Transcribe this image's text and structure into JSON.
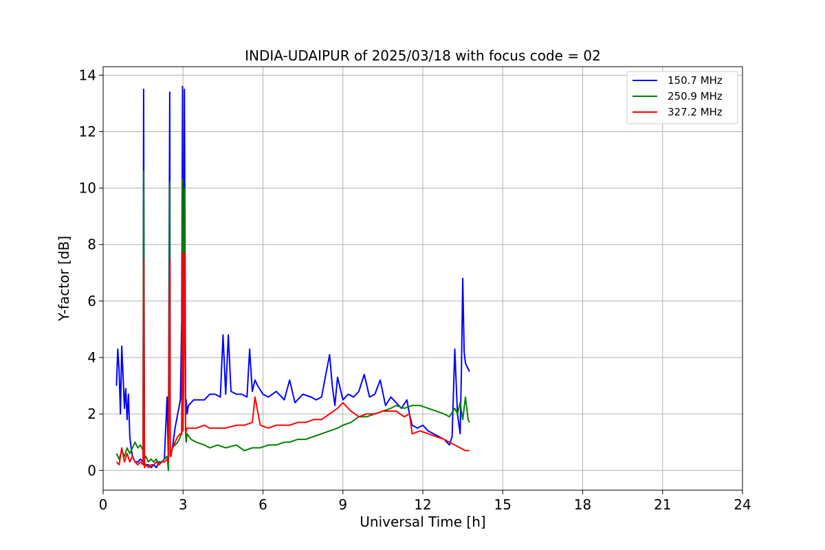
{
  "chart_data": {
    "type": "line",
    "title": "INDIA-UDAIPUR of 2025/03/18 with focus code = 02",
    "xlabel": "Universal Time [h]",
    "ylabel": "Y-factor [dB]",
    "xlim": [
      0,
      24
    ],
    "ylim": [
      -0.7,
      14.3
    ],
    "xticks": [
      0,
      3,
      6,
      9,
      12,
      15,
      18,
      21,
      24
    ],
    "yticks": [
      0,
      2,
      4,
      6,
      8,
      10,
      12,
      14
    ],
    "grid": true,
    "legend_position": "top-right",
    "series": [
      {
        "name": "150.7 MHz",
        "color": "#0000ff",
        "x": [
          0.5,
          0.55,
          0.6,
          0.65,
          0.7,
          0.75,
          0.8,
          0.85,
          0.9,
          0.95,
          1.0,
          1.05,
          1.1,
          1.15,
          1.2,
          1.3,
          1.4,
          1.5,
          1.52,
          1.55,
          1.58,
          1.6,
          1.7,
          1.8,
          1.9,
          2.0,
          2.1,
          2.2,
          2.3,
          2.4,
          2.45,
          2.5,
          2.52,
          2.55,
          2.6,
          2.7,
          2.8,
          2.9,
          2.95,
          2.98,
          3.0,
          3.02,
          3.05,
          3.1,
          3.12,
          3.15,
          3.2,
          3.4,
          3.6,
          3.8,
          4.0,
          4.2,
          4.4,
          4.5,
          4.6,
          4.7,
          4.8,
          5.0,
          5.2,
          5.4,
          5.5,
          5.6,
          5.7,
          5.8,
          6.0,
          6.2,
          6.5,
          6.8,
          7.0,
          7.2,
          7.5,
          7.8,
          8.0,
          8.2,
          8.5,
          8.6,
          8.7,
          8.8,
          9.0,
          9.2,
          9.4,
          9.6,
          9.8,
          10.0,
          10.2,
          10.4,
          10.6,
          10.8,
          11.0,
          11.2,
          11.4,
          11.5,
          11.6,
          11.8,
          12.0,
          12.2,
          12.4,
          12.6,
          12.8,
          13.0,
          13.1,
          13.2,
          13.3,
          13.4,
          13.45,
          13.5,
          13.55,
          13.6,
          13.7,
          13.75
        ],
        "values": [
          3.0,
          4.3,
          3.5,
          2.0,
          4.4,
          3.3,
          2.2,
          2.9,
          1.8,
          2.7,
          1.2,
          0.8,
          0.5,
          0.4,
          0.3,
          0.3,
          0.4,
          0.3,
          13.5,
          0.3,
          0.2,
          0.2,
          0.2,
          0.1,
          0.2,
          0.1,
          0.3,
          0.3,
          0.4,
          2.6,
          0.4,
          13.4,
          0.5,
          0.6,
          0.8,
          1.5,
          2.0,
          2.5,
          5.3,
          13.6,
          2.0,
          3.0,
          13.5,
          2.2,
          2.5,
          2.0,
          2.3,
          2.5,
          2.5,
          2.5,
          2.7,
          2.7,
          2.6,
          4.8,
          2.7,
          4.8,
          2.8,
          2.7,
          2.7,
          2.6,
          4.3,
          2.8,
          3.2,
          3.0,
          2.7,
          2.6,
          2.8,
          2.5,
          3.2,
          2.4,
          2.7,
          2.6,
          2.5,
          2.6,
          4.1,
          3.0,
          2.3,
          3.3,
          2.5,
          2.7,
          2.6,
          2.8,
          3.4,
          2.6,
          2.7,
          3.2,
          2.3,
          2.6,
          2.4,
          2.2,
          2.5,
          2.0,
          1.6,
          1.5,
          1.6,
          1.4,
          1.3,
          1.2,
          1.1,
          0.9,
          1.2,
          4.3,
          2.0,
          1.3,
          3.6,
          6.8,
          4.2,
          3.8,
          3.6,
          3.5
        ]
      },
      {
        "name": "250.9 MHz",
        "color": "#008000",
        "x": [
          0.5,
          0.6,
          0.7,
          0.8,
          0.9,
          1.0,
          1.1,
          1.2,
          1.3,
          1.4,
          1.5,
          1.52,
          1.55,
          1.6,
          1.7,
          1.8,
          1.9,
          2.0,
          2.1,
          2.2,
          2.3,
          2.4,
          2.45,
          2.5,
          2.52,
          2.55,
          2.6,
          2.7,
          2.8,
          2.9,
          2.95,
          2.98,
          3.0,
          3.05,
          3.1,
          3.12,
          3.15,
          3.3,
          3.5,
          3.8,
          4.0,
          4.3,
          4.6,
          5.0,
          5.3,
          5.6,
          5.9,
          6.2,
          6.5,
          6.8,
          7.0,
          7.3,
          7.6,
          7.9,
          8.2,
          8.5,
          8.8,
          9.0,
          9.3,
          9.6,
          9.9,
          10.2,
          10.5,
          10.8,
          11.0,
          11.3,
          11.6,
          11.9,
          12.2,
          12.5,
          12.8,
          13.0,
          13.2,
          13.3,
          13.4,
          13.5,
          13.6,
          13.7,
          13.75
        ],
        "values": [
          0.6,
          0.4,
          0.7,
          0.5,
          0.8,
          0.6,
          0.8,
          1.0,
          0.8,
          0.9,
          0.7,
          10.6,
          0.4,
          0.5,
          0.3,
          0.4,
          0.3,
          0.4,
          0.2,
          0.3,
          0.4,
          0.5,
          0.0,
          10.2,
          0.6,
          0.5,
          0.8,
          0.9,
          1.0,
          1.2,
          1.3,
          10.3,
          1.4,
          10.0,
          1.2,
          1.0,
          1.3,
          1.1,
          1.0,
          0.9,
          0.8,
          0.9,
          0.8,
          0.9,
          0.7,
          0.8,
          0.8,
          0.9,
          0.9,
          1.0,
          1.0,
          1.1,
          1.1,
          1.2,
          1.3,
          1.4,
          1.5,
          1.6,
          1.7,
          1.9,
          1.9,
          2.0,
          2.1,
          2.2,
          2.3,
          2.2,
          2.3,
          2.3,
          2.2,
          2.1,
          2.0,
          1.9,
          2.2,
          2.0,
          2.4,
          1.8,
          2.6,
          1.8,
          1.7
        ]
      },
      {
        "name": "327.2 MHz",
        "color": "#ff0000",
        "x": [
          0.5,
          0.6,
          0.7,
          0.8,
          0.9,
          1.0,
          1.1,
          1.2,
          1.3,
          1.4,
          1.5,
          1.52,
          1.55,
          1.6,
          1.7,
          1.8,
          1.9,
          2.0,
          2.1,
          2.2,
          2.3,
          2.4,
          2.45,
          2.5,
          2.52,
          2.55,
          2.6,
          2.7,
          2.8,
          2.9,
          2.95,
          2.98,
          3.0,
          3.05,
          3.1,
          3.12,
          3.15,
          3.3,
          3.5,
          3.8,
          4.0,
          4.3,
          4.6,
          5.0,
          5.3,
          5.6,
          5.7,
          5.9,
          6.2,
          6.5,
          6.8,
          7.0,
          7.3,
          7.6,
          7.9,
          8.2,
          8.5,
          8.8,
          9.0,
          9.3,
          9.6,
          9.9,
          10.2,
          10.5,
          10.8,
          11.0,
          11.3,
          11.5,
          11.6,
          11.9,
          12.2,
          12.5,
          12.8,
          13.0,
          13.2,
          13.4,
          13.6,
          13.75
        ],
        "values": [
          0.3,
          0.2,
          0.8,
          0.3,
          0.6,
          0.3,
          0.5,
          0.3,
          0.2,
          0.3,
          0.2,
          7.5,
          0.1,
          0.2,
          0.1,
          0.2,
          0.2,
          0.3,
          0.2,
          0.3,
          0.3,
          0.4,
          0.3,
          7.5,
          0.5,
          0.6,
          0.8,
          1.0,
          1.2,
          1.3,
          1.3,
          7.7,
          1.4,
          7.7,
          1.3,
          1.4,
          1.5,
          1.5,
          1.5,
          1.6,
          1.5,
          1.5,
          1.5,
          1.6,
          1.6,
          1.7,
          2.6,
          1.6,
          1.5,
          1.6,
          1.6,
          1.6,
          1.7,
          1.7,
          1.8,
          1.8,
          2.0,
          2.2,
          2.4,
          2.1,
          1.9,
          2.0,
          2.0,
          2.1,
          2.1,
          2.1,
          1.9,
          2.0,
          1.3,
          1.4,
          1.3,
          1.2,
          1.1,
          1.0,
          0.9,
          0.8,
          0.7,
          0.7
        ]
      }
    ]
  }
}
